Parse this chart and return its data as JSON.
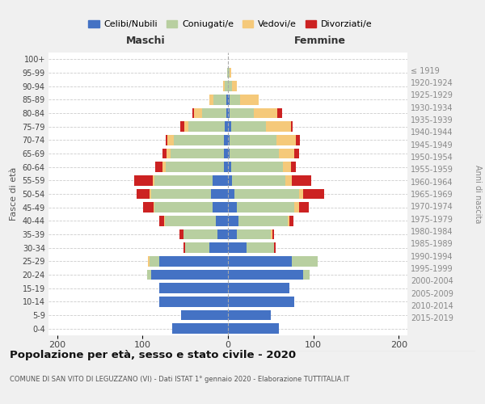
{
  "age_groups": [
    "0-4",
    "5-9",
    "10-14",
    "15-19",
    "20-24",
    "25-29",
    "30-34",
    "35-39",
    "40-44",
    "45-49",
    "50-54",
    "55-59",
    "60-64",
    "65-69",
    "70-74",
    "75-79",
    "80-84",
    "85-89",
    "90-94",
    "95-99",
    "100+"
  ],
  "birth_years": [
    "2015-2019",
    "2010-2014",
    "2005-2009",
    "2000-2004",
    "1995-1999",
    "1990-1994",
    "1985-1989",
    "1980-1984",
    "1975-1979",
    "1970-1974",
    "1965-1969",
    "1960-1964",
    "1955-1959",
    "1950-1954",
    "1945-1949",
    "1940-1944",
    "1935-1939",
    "1930-1934",
    "1925-1929",
    "1920-1924",
    "≤ 1919"
  ],
  "maschi": {
    "celibi": [
      65,
      55,
      80,
      80,
      90,
      80,
      22,
      12,
      14,
      18,
      20,
      18,
      5,
      5,
      5,
      4,
      2,
      2,
      0,
      0,
      0
    ],
    "coniugati": [
      0,
      0,
      0,
      0,
      5,
      12,
      28,
      40,
      60,
      68,
      70,
      68,
      68,
      62,
      58,
      42,
      28,
      15,
      4,
      1,
      0
    ],
    "vedovi": [
      0,
      0,
      0,
      0,
      0,
      2,
      0,
      0,
      1,
      1,
      2,
      2,
      4,
      5,
      8,
      5,
      10,
      5,
      2,
      0,
      0
    ],
    "divorziati": [
      0,
      0,
      0,
      0,
      0,
      0,
      2,
      5,
      5,
      12,
      15,
      22,
      8,
      5,
      2,
      5,
      2,
      0,
      0,
      0,
      0
    ]
  },
  "femmine": {
    "nubili": [
      60,
      50,
      78,
      72,
      88,
      75,
      22,
      10,
      12,
      10,
      8,
      5,
      4,
      2,
      2,
      4,
      2,
      2,
      0,
      0,
      0
    ],
    "coniugate": [
      0,
      0,
      0,
      0,
      8,
      30,
      32,
      40,
      58,
      68,
      75,
      62,
      60,
      58,
      55,
      40,
      28,
      12,
      5,
      2,
      0
    ],
    "vedove": [
      0,
      0,
      0,
      0,
      0,
      0,
      0,
      2,
      2,
      5,
      5,
      8,
      10,
      18,
      22,
      30,
      28,
      22,
      5,
      2,
      0
    ],
    "divorziate": [
      0,
      0,
      0,
      0,
      0,
      0,
      2,
      2,
      5,
      12,
      25,
      22,
      5,
      5,
      5,
      2,
      5,
      0,
      0,
      0,
      0
    ]
  },
  "colors": {
    "celibi": "#4472c4",
    "coniugati": "#b8cfa0",
    "vedovi": "#f5c97a",
    "divorziati": "#cc2222"
  },
  "xlim": [
    -210,
    210
  ],
  "xticks": [
    -200,
    -100,
    0,
    100,
    200
  ],
  "xticklabels": [
    "200",
    "100",
    "0",
    "100",
    "200"
  ],
  "title": "Popolazione per età, sesso e stato civile - 2020",
  "subtitle": "COMUNE DI SAN VITO DI LEGUZZANO (VI) - Dati ISTAT 1° gennaio 2020 - Elaborazione TUTTITALIA.IT",
  "ylabel_left": "Fasce di età",
  "ylabel_right": "Anni di nascita",
  "label_maschi": "Maschi",
  "label_femmine": "Femmine",
  "legend_labels": [
    "Celibi/Nubili",
    "Coniugati/e",
    "Vedovi/e",
    "Divorziati/e"
  ],
  "background_color": "#f0f0f0",
  "plot_background": "#ffffff"
}
